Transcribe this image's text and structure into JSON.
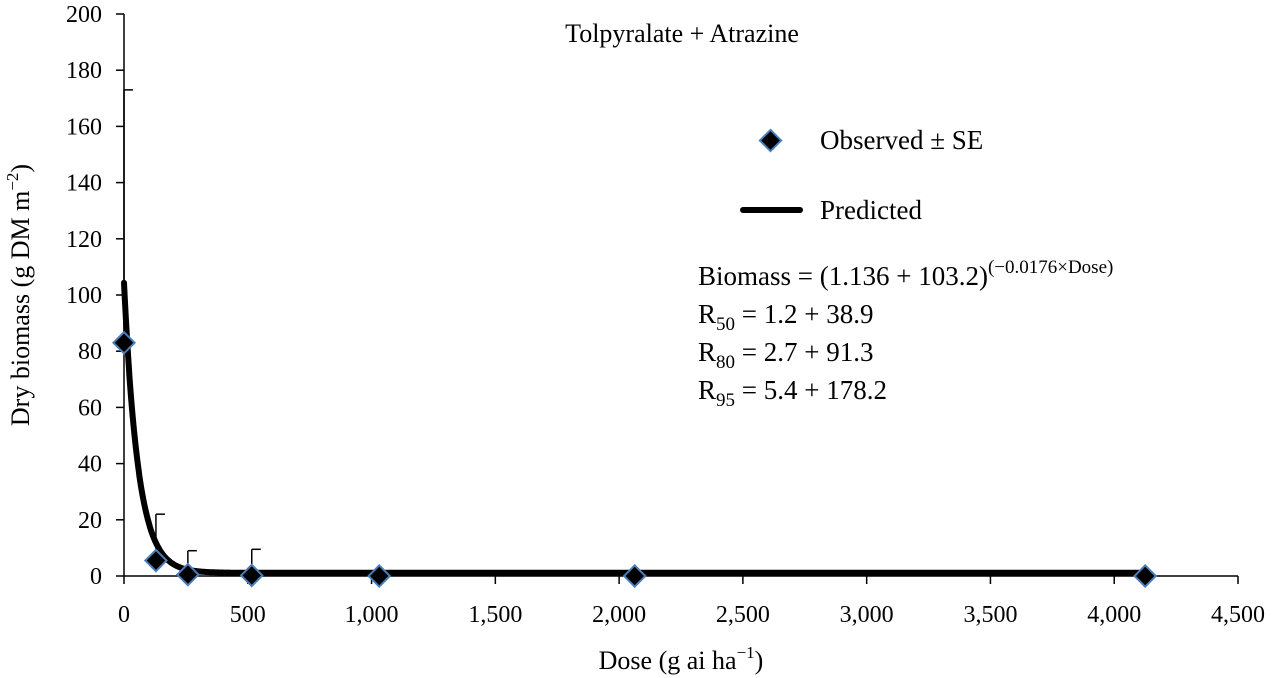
{
  "chart_data": {
    "type": "scatter",
    "title": "Tolpyralate + Atrazine",
    "xlabel": "Dose (g ai ha",
    "xlabel_sup": "−1",
    "xlabel_end": ")",
    "ylabel": "Dry biomass (g DM m",
    "ylabel_sup": "−2",
    "ylabel_end": ")",
    "xlim": [
      0,
      4500
    ],
    "ylim": [
      0,
      200
    ],
    "x_ticks": [
      0,
      500,
      1000,
      1500,
      2000,
      2500,
      3000,
      3500,
      4000,
      4500
    ],
    "x_tick_labels": [
      "0",
      "500",
      "1,000",
      "1,500",
      "2,000",
      "2,500",
      "3,000",
      "3,500",
      "4,000",
      "4,500"
    ],
    "y_ticks": [
      0,
      20,
      40,
      60,
      80,
      100,
      120,
      140,
      160,
      180,
      200
    ],
    "y_tick_labels": [
      "0",
      "20",
      "40",
      "60",
      "80",
      "100",
      "120",
      "140",
      "160",
      "180",
      "200"
    ],
    "series": [
      {
        "name": "Observed ± SE",
        "kind": "scatter",
        "marker": "diamond",
        "color": "#000000",
        "edge_color": "#4a7ebb",
        "x": [
          0,
          129,
          258,
          516,
          1031,
          2063,
          4125
        ],
        "y": [
          83,
          5.5,
          0.5,
          0.2,
          0,
          0,
          0
        ],
        "se": [
          90,
          16.5,
          8.5,
          9.3,
          0,
          0,
          0
        ]
      },
      {
        "name": "Predicted",
        "kind": "line",
        "color": "#000000",
        "model": {
          "c": 1.136,
          "d": 103.2,
          "b": -0.0176
        }
      }
    ],
    "legend": {
      "position": "right"
    },
    "equation": {
      "main": "Biomass = (1.136 + 103.2)",
      "main_sup": "(−0.0176×Dose)",
      "r50_label": "R",
      "r50_sub": "50",
      "r50_value": " = 1.2 + 38.9",
      "r80_label": "R",
      "r80_sub": "80",
      "r80_value": " = 2.7 + 91.3",
      "r95_label": "R",
      "r95_sub": "95",
      "r95_value": " = 5.4 + 178.2"
    },
    "grid": false
  }
}
